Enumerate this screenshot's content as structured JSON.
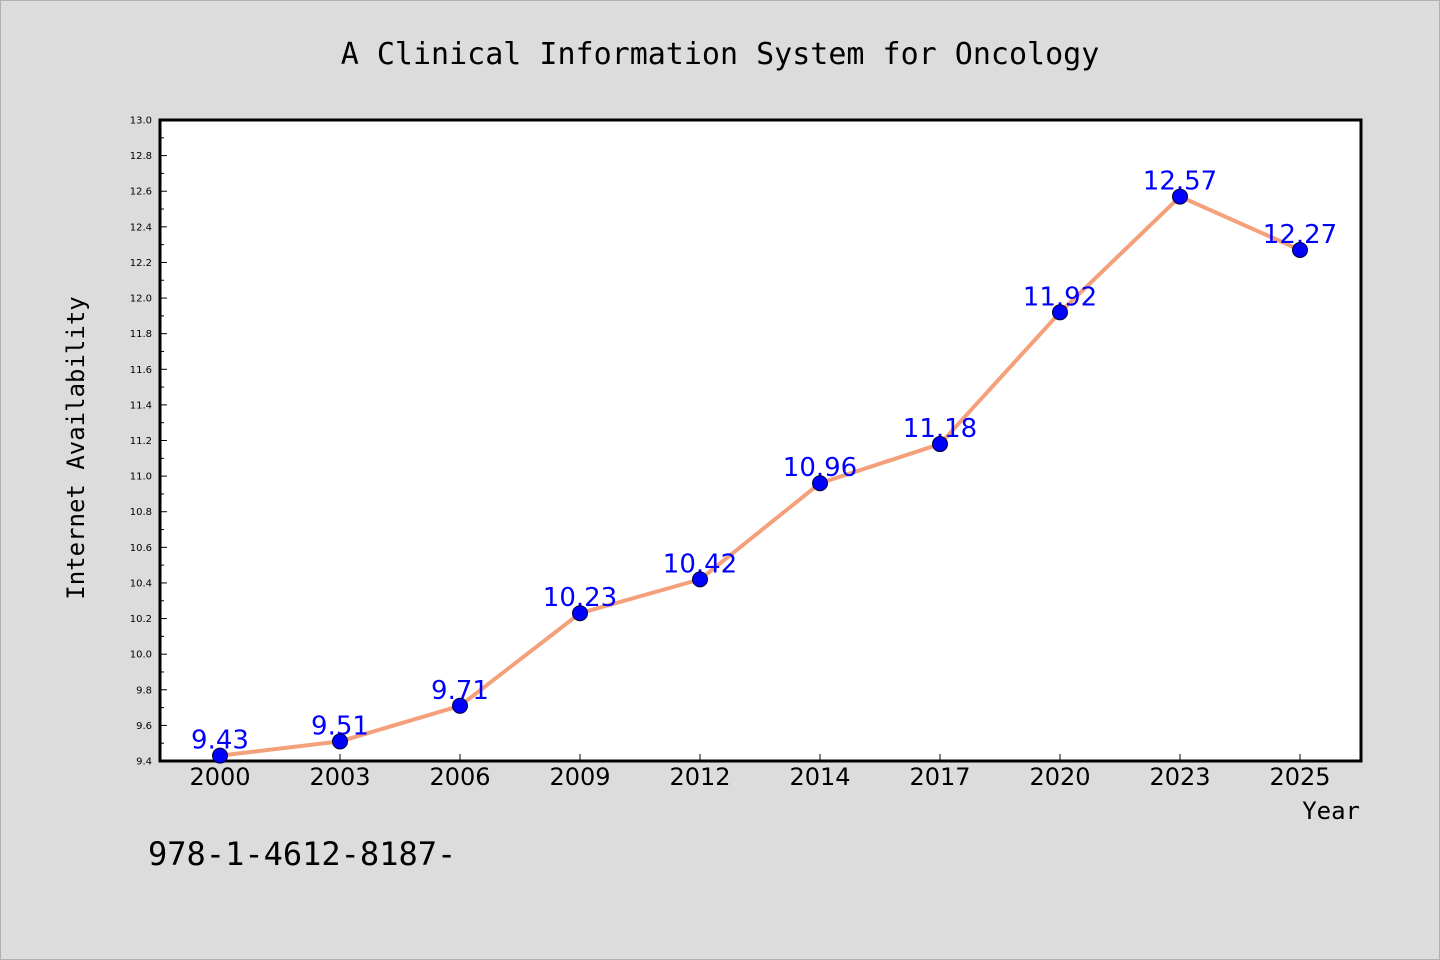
{
  "chart_data": {
    "type": "line",
    "title": "A Clinical Information System for Oncology",
    "xlabel": "Year",
    "ylabel": "Internet Availability",
    "categories": [
      "2000",
      "2003",
      "2006",
      "2009",
      "2012",
      "2014",
      "2017",
      "2020",
      "2023",
      "2025"
    ],
    "series": [
      {
        "values": [
          9.43,
          9.51,
          9.71,
          10.23,
          10.42,
          10.96,
          11.18,
          11.92,
          12.57,
          12.27
        ]
      }
    ],
    "data_labels": [
      "9.43",
      "9.51",
      "9.71",
      "10.23",
      "10.42",
      "10.96",
      "11.18",
      "11.92",
      "12.57",
      "12.27"
    ],
    "ylim": [
      9.4,
      13.0
    ],
    "yticks": [
      "9.4",
      "9.6",
      "9.8",
      "10.0",
      "10.2",
      "10.4",
      "10.6",
      "10.8",
      "11.0",
      "11.2",
      "11.4",
      "11.6",
      "11.8",
      "12.0",
      "12.2",
      "12.4",
      "12.6",
      "12.8",
      "13.0"
    ],
    "grid": false,
    "legend": "none",
    "colors": {
      "line": "#f4a07a",
      "marker": "#0000ff",
      "data_label": "#0000ff",
      "background": "#dcdcdc",
      "plot_background": "#ffffff"
    }
  },
  "footer": {
    "text": "978-1-4612-8187-"
  }
}
